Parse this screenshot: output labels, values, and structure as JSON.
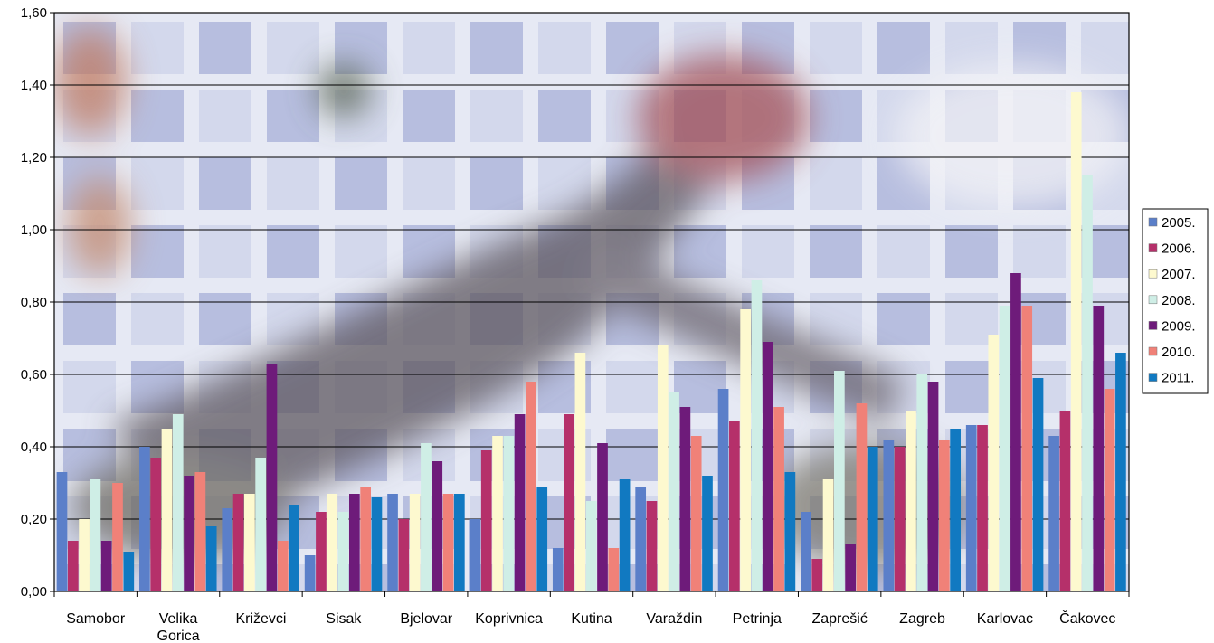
{
  "chart_data": {
    "type": "bar",
    "title": "",
    "xlabel": "",
    "ylabel": "",
    "ylim": [
      0,
      1.6
    ],
    "y_ticks": [
      "0,00",
      "0,20",
      "0,40",
      "0,60",
      "0,80",
      "1,00",
      "1,20",
      "1,40",
      "1,60"
    ],
    "grid": true,
    "legend_position": "right",
    "categories": [
      [
        "Samobor"
      ],
      [
        "Velika",
        "Gorica"
      ],
      [
        "Križevci"
      ],
      [
        "Sisak"
      ],
      [
        "Bjelovar"
      ],
      [
        "Koprivnica"
      ],
      [
        "Kutina"
      ],
      [
        "Varaždin"
      ],
      [
        "Petrinja"
      ],
      [
        "Zaprešić"
      ],
      [
        "Zagreb"
      ],
      [
        "Karlovac"
      ],
      [
        "Čakovec"
      ]
    ],
    "series": [
      {
        "name": "2005.",
        "color": "#5b7fc9",
        "values": [
          0.33,
          0.4,
          0.23,
          0.1,
          0.27,
          0.2,
          0.12,
          0.29,
          0.56,
          0.22,
          0.42,
          0.46,
          0.43
        ]
      },
      {
        "name": "2006.",
        "color": "#b5306a",
        "values": [
          0.14,
          0.37,
          0.27,
          0.22,
          0.2,
          0.39,
          0.49,
          0.25,
          0.47,
          0.09,
          0.4,
          0.46,
          0.5
        ]
      },
      {
        "name": "2007.",
        "color": "#fdf9cf",
        "values": [
          0.2,
          0.45,
          0.27,
          0.27,
          0.27,
          0.43,
          0.66,
          0.68,
          0.78,
          0.31,
          0.5,
          0.71,
          1.38
        ]
      },
      {
        "name": "2008.",
        "color": "#cfeee6",
        "values": [
          0.31,
          0.49,
          0.37,
          0.22,
          0.41,
          0.43,
          0.25,
          0.55,
          0.86,
          0.61,
          0.6,
          0.79,
          1.15
        ]
      },
      {
        "name": "2009.",
        "color": "#6e1b7a",
        "values": [
          0.14,
          0.32,
          0.63,
          0.27,
          0.36,
          0.49,
          0.41,
          0.51,
          0.69,
          0.13,
          0.58,
          0.88,
          0.79
        ]
      },
      {
        "name": "2010.",
        "color": "#f08178",
        "values": [
          0.3,
          0.33,
          0.14,
          0.29,
          0.27,
          0.58,
          0.12,
          0.43,
          0.51,
          0.52,
          0.42,
          0.79,
          0.56
        ]
      },
      {
        "name": "2011.",
        "color": "#1179c1",
        "values": [
          0.11,
          0.18,
          0.24,
          0.26,
          0.27,
          0.29,
          0.31,
          0.32,
          0.33,
          0.4,
          0.45,
          0.59,
          0.66
        ]
      }
    ]
  }
}
